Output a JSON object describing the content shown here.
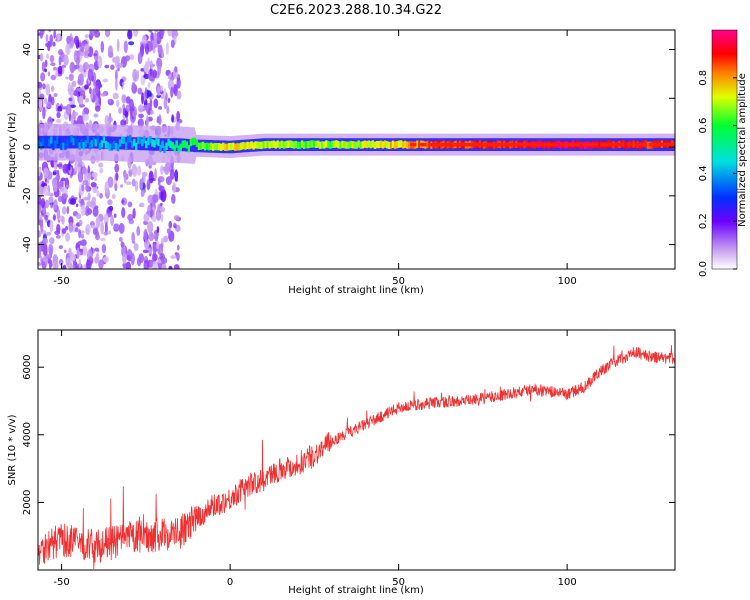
{
  "title": "C2E6.2023.288.10.34.G22",
  "chart_data": [
    {
      "type": "heatmap",
      "xlabel": "Height of straight line (km)",
      "ylabel": "Frequency (Hz)",
      "xlim": [
        -57,
        132
      ],
      "ylim": [
        -50,
        48
      ],
      "xticks": [
        -50,
        0,
        50,
        100
      ],
      "yticks": [
        -40,
        -20,
        0,
        20,
        40
      ],
      "xtick_labels": [
        "-50",
        "0",
        "50",
        "100"
      ],
      "ytick_labels": [
        "-40",
        "-20",
        "0",
        "20",
        "40"
      ],
      "grid": false,
      "ridge": {
        "x": [
          -57,
          -50,
          -40,
          -30,
          -20,
          -15,
          -10,
          0,
          10,
          20,
          40,
          60,
          80,
          100,
          120,
          132
        ],
        "freq": [
          2,
          2,
          2,
          1.5,
          1,
          1,
          0.5,
          0,
          1,
          1,
          1,
          1,
          1,
          1,
          1,
          1
        ],
        "amplitude": [
          0.35,
          0.35,
          0.4,
          0.4,
          0.45,
          0.55,
          0.6,
          0.75,
          0.7,
          0.65,
          0.7,
          0.85,
          0.9,
          0.95,
          0.9,
          0.85
        ]
      },
      "colorbar": {
        "label": "Normalized spectral amplitude",
        "range": [
          0,
          1
        ],
        "ticks": [
          0.0,
          0.2,
          0.4,
          0.6,
          0.8
        ],
        "tick_labels": [
          "0.0",
          "0.2",
          "0.4",
          "0.6",
          "0.8"
        ]
      }
    },
    {
      "type": "line",
      "xlabel": "Height of straight line (km)",
      "ylabel": "SNR (10 * v/v)",
      "xlim": [
        -57,
        132
      ],
      "ylim": [
        0,
        7100
      ],
      "xticks": [
        -50,
        0,
        50,
        100
      ],
      "yticks": [
        2000,
        4000,
        6000
      ],
      "xtick_labels": [
        "-50",
        "0",
        "50",
        "100"
      ],
      "ytick_labels": [
        "2000",
        "4000",
        "6000"
      ],
      "grid": false,
      "series": [
        {
          "color": "#f03030",
          "x": [
            -57,
            -50,
            -45,
            -40,
            -35,
            -30,
            -25,
            -20,
            -15,
            -10,
            -5,
            0,
            5,
            10,
            15,
            20,
            25,
            30,
            40,
            50,
            60,
            70,
            80,
            90,
            100,
            105,
            110,
            115,
            120,
            125,
            132
          ],
          "values": [
            600,
            900,
            800,
            700,
            800,
            950,
            1000,
            1050,
            1100,
            1500,
            1900,
            2100,
            2500,
            2650,
            3000,
            3100,
            3400,
            3800,
            4300,
            4800,
            4950,
            5000,
            5150,
            5350,
            5200,
            5400,
            5900,
            6200,
            6450,
            6300,
            6250
          ]
        }
      ]
    }
  ]
}
